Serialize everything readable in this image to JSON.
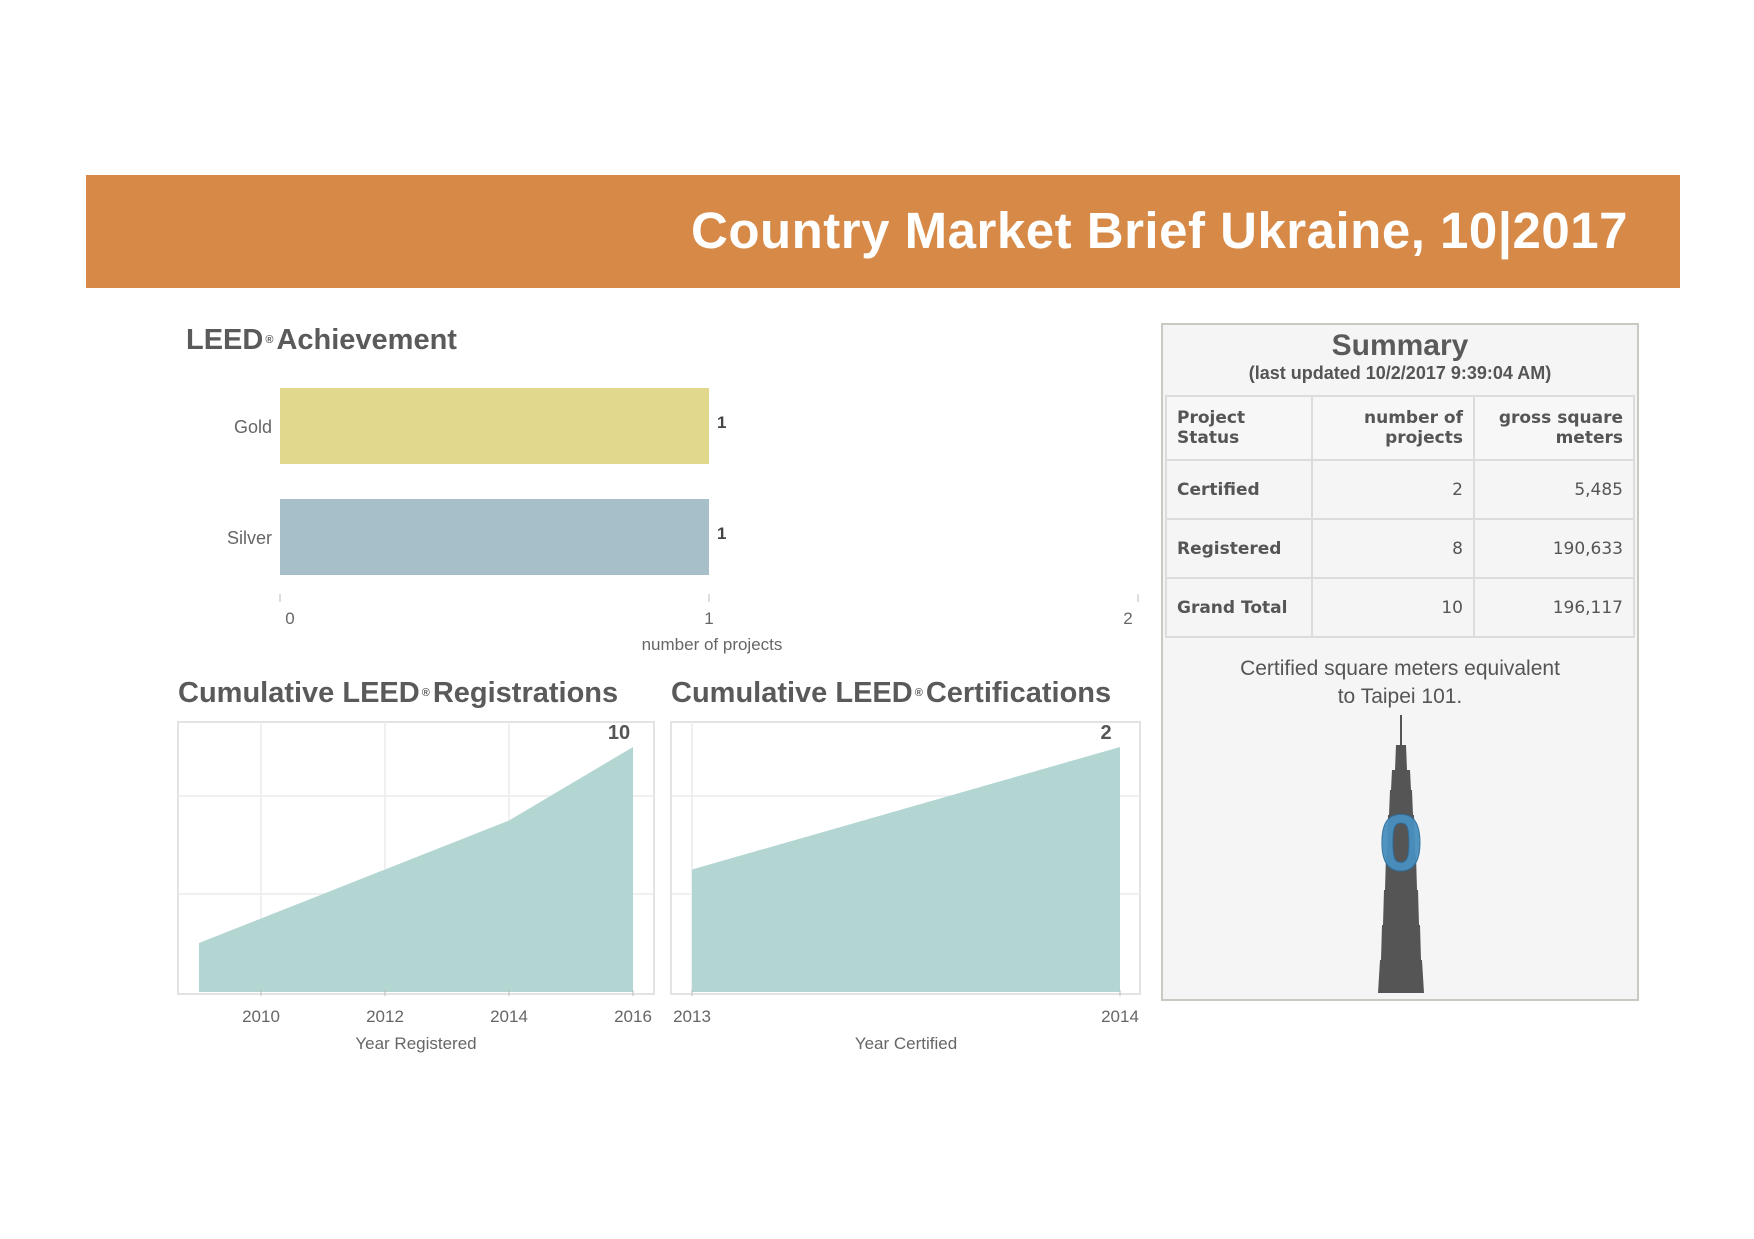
{
  "banner": {
    "title": "Country Market Brief Ukraine, 10|2017",
    "color": "#d78a48"
  },
  "achievement": {
    "title": "LEED",
    "title_mark": "®",
    "title_rest": "Achievement"
  },
  "registrations": {
    "title": "Cumulative LEED",
    "title_mark": "®",
    "title_rest": "Registrations"
  },
  "certifications": {
    "title": "Cumulative LEED",
    "title_mark": "®",
    "title_rest": "Certifications"
  },
  "chart_data": [
    {
      "type": "bar",
      "orientation": "horizontal",
      "categories": [
        "Gold",
        "Silver"
      ],
      "values": [
        1,
        1
      ],
      "data_labels": [
        "1",
        "1"
      ],
      "colors": [
        "#e2d88d",
        "#a6bfc9"
      ],
      "xlabel": "number of projects",
      "xlim": [
        0,
        2
      ],
      "xticks": [
        "0",
        "1",
        "2"
      ]
    },
    {
      "type": "area",
      "x": [
        2009,
        2010,
        2011,
        2012,
        2013,
        2014,
        2015,
        2016
      ],
      "values": [
        2,
        3,
        4,
        5,
        6,
        7,
        8.5,
        10
      ],
      "xlabel": "Year Registered",
      "xlim": [
        2009,
        2016
      ],
      "ylim": [
        0,
        10
      ],
      "xticks": [
        "2010",
        "2012",
        "2014",
        "2016"
      ],
      "end_label": "10",
      "color": "#b3d6d3",
      "grid": true
    },
    {
      "type": "area",
      "x": [
        2013,
        2014
      ],
      "values": [
        1,
        2
      ],
      "xlabel": "Year Certified",
      "xlim": [
        2013,
        2014
      ],
      "ylim": [
        0,
        2
      ],
      "xticks": [
        "2013",
        "2014"
      ],
      "end_label": "2",
      "color": "#b3d6d3",
      "grid": true
    }
  ],
  "summary": {
    "title": "Summary",
    "subtitle": "(last updated 10/2/2017 9:39:04 AM)",
    "columns": [
      "Project Status",
      "number of projects",
      "gross square meters"
    ],
    "rows": [
      {
        "status": "Certified",
        "projects": "2",
        "sqm": "5,485"
      },
      {
        "status": "Registered",
        "projects": "8",
        "sqm": "190,633"
      },
      {
        "status": "Grand Total",
        "projects": "10",
        "sqm": "196,117"
      }
    ],
    "note_line1": "Certified square meters equivalent",
    "note_line2": "to Taipei 101.",
    "tower_value": "0",
    "tower_color": "#555555",
    "tower_accent": "#4a8fbf"
  }
}
